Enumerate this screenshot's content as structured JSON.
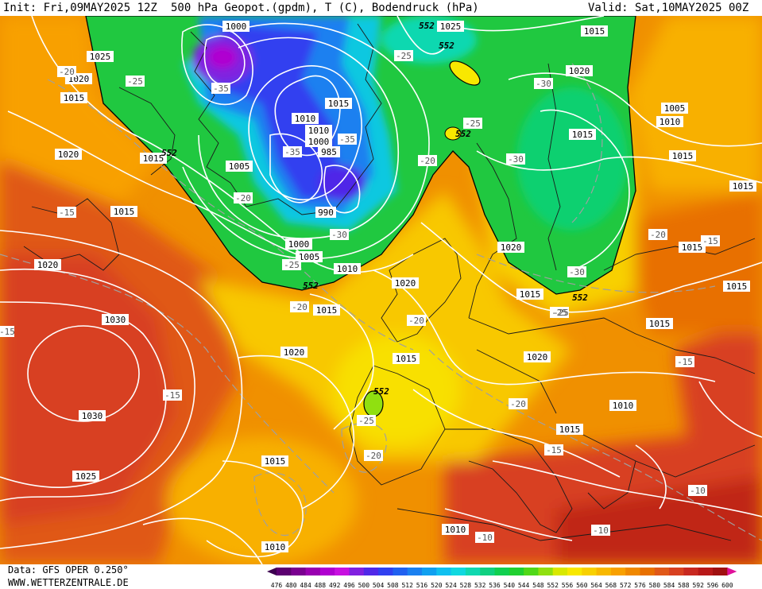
{
  "header": {
    "init": "Init: Fri,09MAY2025 12Z",
    "title": "500 hPa Geopot.(gpdm), T (C), Bodendruck (hPa)",
    "valid": "Valid: Sat,10MAY2025 00Z"
  },
  "footer": {
    "data_source": "Data: GFS OPER 0.250°",
    "website": "WWW.WETTERZENTRALE.DE"
  },
  "legend": {
    "values": [
      "476",
      "480",
      "484",
      "488",
      "492",
      "496",
      "500",
      "504",
      "508",
      "512",
      "516",
      "520",
      "524",
      "528",
      "532",
      "536",
      "540",
      "544",
      "548",
      "552",
      "556",
      "560",
      "564",
      "568",
      "572",
      "576",
      "580",
      "584",
      "588",
      "592",
      "596",
      "600"
    ],
    "colors": [
      "#3d0050",
      "#5c0070",
      "#7a0090",
      "#9900b0",
      "#b000d0",
      "#c810e0",
      "#8020e0",
      "#5028e8",
      "#3040f0",
      "#2060f0",
      "#1a80f0",
      "#10a0f0",
      "#10c0f0",
      "#10d8e0",
      "#10d8b0",
      "#10d080",
      "#10d050",
      "#20d030",
      "#50d818",
      "#90e010",
      "#d8e800",
      "#f8e800",
      "#f8d000",
      "#f8b800",
      "#f8a000",
      "#f08800",
      "#e87000",
      "#e05818",
      "#d84020",
      "#c82820",
      "#b81818",
      "#a01010",
      "#e0109a"
    ]
  },
  "pressure_labels": [
    "1000",
    "1025",
    "1020",
    "1015",
    "1015",
    "1010",
    "1010",
    "1000",
    "985",
    "1005",
    "1015",
    "990",
    "1000",
    "1005",
    "1010",
    "1015",
    "1020",
    "1020",
    "1015",
    "1030",
    "1030",
    "1025",
    "1015",
    "1010",
    "1025",
    "1020",
    "1015",
    "1015",
    "1020",
    "1020",
    "1015",
    "1015",
    "1005",
    "1010",
    "1015",
    "1015",
    "1015",
    "1015",
    "1015",
    "1010",
    "1015",
    "1020",
    "1020",
    "1010"
  ],
  "temperature_labels": [
    "-20",
    "-25",
    "-35",
    "-35",
    "-25",
    "-30",
    "-20",
    "-25",
    "-30",
    "-30",
    "-20",
    "-25",
    "-20",
    "-25",
    "-20",
    "-30",
    "-25",
    "-20",
    "-15",
    "-15",
    "-15",
    "-20",
    "-15",
    "-10",
    "-10",
    "-15",
    "-10",
    "-25",
    "-20",
    "-15",
    "-35"
  ],
  "geopotential_labels": [
    "552",
    "552",
    "552",
    "552",
    "552",
    "552",
    "552"
  ]
}
